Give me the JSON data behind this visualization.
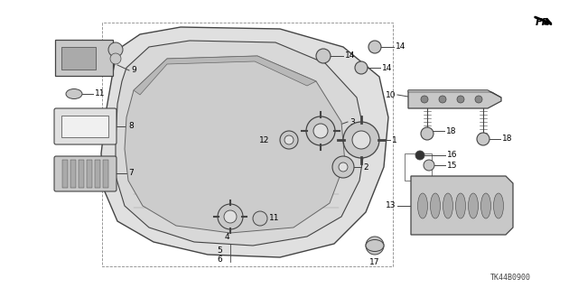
{
  "bg_color": "#ffffff",
  "part_code": "TK44B0900",
  "line_color": "#444444",
  "fill_light": "#e0e0e0",
  "fill_mid": "#c8c8c8",
  "fill_dark": "#aaaaaa"
}
